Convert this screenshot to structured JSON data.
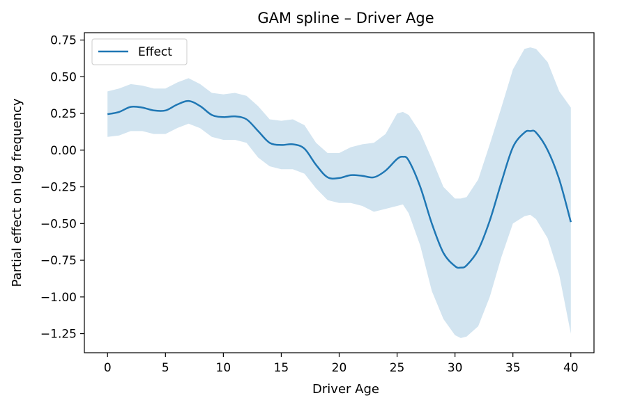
{
  "chart_data": {
    "type": "line",
    "title": "GAM spline – Driver Age",
    "xlabel": "Driver Age",
    "ylabel": "Partial effect on log frequency",
    "xlim": [
      -2,
      42
    ],
    "ylim": [
      -1.38,
      0.8
    ],
    "x_ticks": [
      0,
      5,
      10,
      15,
      20,
      25,
      30,
      35,
      40
    ],
    "x_tick_labels": [
      "0",
      "5",
      "10",
      "15",
      "20",
      "25",
      "30",
      "35",
      "40"
    ],
    "y_ticks": [
      0.75,
      0.5,
      0.25,
      0.0,
      -0.25,
      -0.5,
      -0.75,
      -1.0,
      -1.25
    ],
    "y_tick_labels": [
      "0.75",
      "0.50",
      "0.25",
      "0.00",
      "−0.25",
      "−0.50",
      "−0.75",
      "−1.00",
      "−1.25"
    ],
    "grid": false,
    "legend": {
      "position": "top-left",
      "entries": [
        "Effect"
      ]
    },
    "colors": {
      "line": "#1f77b4",
      "band": "#1f77b4"
    },
    "series": [
      {
        "name": "Effect",
        "x": [
          0,
          1,
          2,
          3,
          4,
          5,
          6,
          7,
          8,
          9,
          10,
          11,
          12,
          13,
          14,
          15,
          16,
          17,
          18,
          19,
          20,
          21,
          22,
          23,
          24,
          25,
          25.5,
          26,
          27,
          28,
          29,
          30,
          30.5,
          31,
          32,
          33,
          34,
          35,
          36,
          36.5,
          37,
          38,
          39,
          40
        ],
        "values": [
          0.245,
          0.26,
          0.295,
          0.29,
          0.27,
          0.27,
          0.31,
          0.335,
          0.3,
          0.24,
          0.225,
          0.23,
          0.21,
          0.13,
          0.05,
          0.035,
          0.04,
          0.01,
          -0.1,
          -0.185,
          -0.19,
          -0.17,
          -0.175,
          -0.185,
          -0.14,
          -0.06,
          -0.045,
          -0.07,
          -0.25,
          -0.5,
          -0.7,
          -0.79,
          -0.8,
          -0.785,
          -0.68,
          -0.48,
          -0.22,
          0.02,
          0.12,
          0.13,
          0.12,
          0.0,
          -0.2,
          -0.49
        ],
        "lower": [
          0.09,
          0.1,
          0.13,
          0.13,
          0.11,
          0.11,
          0.15,
          0.18,
          0.15,
          0.09,
          0.07,
          0.07,
          0.05,
          -0.05,
          -0.11,
          -0.13,
          -0.13,
          -0.16,
          -0.26,
          -0.34,
          -0.36,
          -0.36,
          -0.38,
          -0.42,
          -0.4,
          -0.38,
          -0.37,
          -0.43,
          -0.65,
          -0.96,
          -1.15,
          -1.26,
          -1.28,
          -1.27,
          -1.2,
          -1.0,
          -0.73,
          -0.5,
          -0.45,
          -0.44,
          -0.47,
          -0.6,
          -0.85,
          -1.25
        ],
        "upper": [
          0.4,
          0.42,
          0.45,
          0.44,
          0.42,
          0.42,
          0.46,
          0.49,
          0.45,
          0.39,
          0.38,
          0.39,
          0.37,
          0.3,
          0.21,
          0.2,
          0.21,
          0.17,
          0.05,
          -0.02,
          -0.02,
          0.02,
          0.04,
          0.05,
          0.11,
          0.25,
          0.26,
          0.24,
          0.12,
          -0.06,
          -0.25,
          -0.33,
          -0.33,
          -0.32,
          -0.2,
          0.04,
          0.29,
          0.55,
          0.69,
          0.7,
          0.69,
          0.6,
          0.4,
          0.29
        ]
      }
    ]
  }
}
